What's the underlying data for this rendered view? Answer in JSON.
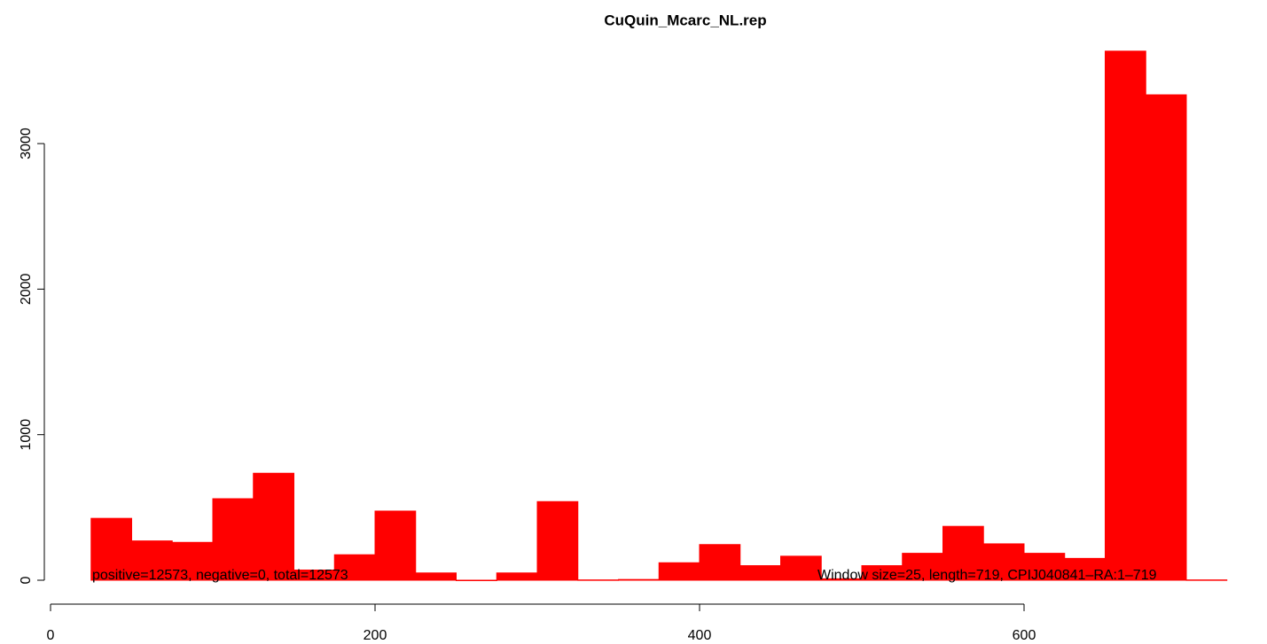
{
  "chart_data": {
    "type": "histogram",
    "title": "CuQuin_Mcarc_NL.rep",
    "bins": [
      25,
      50,
      75,
      100,
      125,
      150,
      175,
      200,
      225,
      250,
      275,
      300,
      325,
      350,
      375,
      400,
      425,
      450,
      475,
      500,
      525,
      550,
      575,
      600,
      625,
      650,
      675,
      700,
      725
    ],
    "counts": [
      425,
      270,
      260,
      560,
      735,
      70,
      175,
      475,
      50,
      0,
      50,
      540,
      2,
      5,
      120,
      245,
      100,
      165,
      10,
      100,
      185,
      370,
      250,
      185,
      150,
      3635,
      3335,
      2
    ],
    "color": "#ff0000",
    "xlim": [
      0,
      750
    ],
    "xticks": [
      0,
      200,
      400,
      600
    ],
    "ylim": [
      0,
      3670
    ],
    "yticks": [
      0,
      1000,
      2000,
      3000
    ],
    "annotations": [
      "positive=12573, negative=0, total=12573",
      "Window size=25, length=719, CPIJ040841–RA:1–719"
    ]
  }
}
